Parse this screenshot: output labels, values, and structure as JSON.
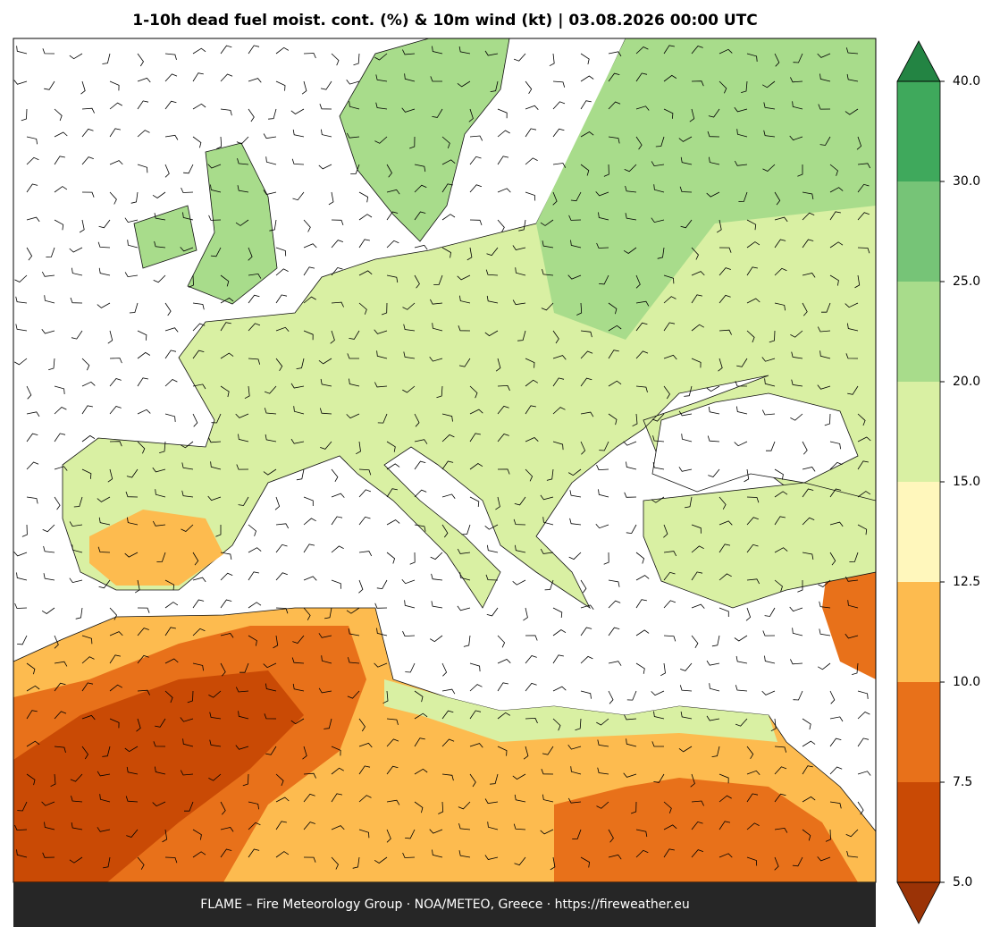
{
  "title": "1-10h dead fuel moist. cont. (%) & 10m wind (kt)  |  03.08.2026 00:00 UTC",
  "footer": "FLAME – Fire Meteorology Group · NOA/METEO, Greece · https://fireweather.eu",
  "colorbar": {
    "ticks": [
      {
        "value": 5,
        "label": "5.0"
      },
      {
        "value": 7.5,
        "label": "7.5"
      },
      {
        "value": 10,
        "label": "10.0"
      },
      {
        "value": 12.5,
        "label": "12.5"
      },
      {
        "value": 15,
        "label": "15.0"
      },
      {
        "value": 20,
        "label": "20.0"
      },
      {
        "value": 25,
        "label": "25.0"
      },
      {
        "value": 30,
        "label": "30.0"
      },
      {
        "value": 40,
        "label": "40.0"
      }
    ],
    "colors": [
      "#c94a05",
      "#e8711a",
      "#fdbb4f",
      "#fff7bc",
      "#d9f0a3",
      "#a8dc8b",
      "#76c477",
      "#3fa95c"
    ],
    "under_color": "#9b3306",
    "over_color": "#238443"
  }
}
